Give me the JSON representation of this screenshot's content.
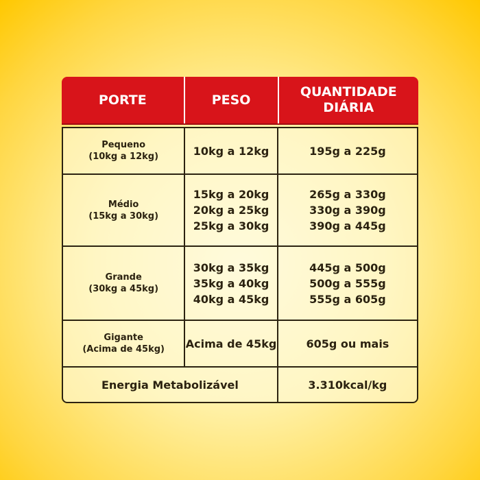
{
  "table": {
    "header": [
      "PORTE",
      "PESO",
      "QUANTIDADE DIÁRIA"
    ],
    "rows": [
      {
        "porte": [
          "Pequeno",
          "(10kg a 12kg)"
        ],
        "peso": [
          "10kg a 12kg"
        ],
        "quantidade": [
          "195g a 225g"
        ]
      },
      {
        "porte": [
          "Médio",
          "(15kg a 30kg)"
        ],
        "peso": [
          "15kg a 20kg",
          "20kg a 25kg",
          "25kg a 30kg"
        ],
        "quantidade": [
          "265g a 330g",
          "330g a 390g",
          "390g a 445g"
        ]
      },
      {
        "porte": [
          "Grande",
          "(30kg a 45kg)"
        ],
        "peso": [
          "30kg a 35kg",
          "35kg a 40kg",
          "40kg a 45kg"
        ],
        "quantidade": [
          "445g a 500g",
          "500g a 555g",
          "555g a 605g"
        ]
      },
      {
        "porte": [
          "Gigante",
          "(Acima de 45kg)"
        ],
        "peso": [
          "Acima de 45kg"
        ],
        "quantidade": [
          "605g ou mais"
        ]
      }
    ],
    "footer": {
      "label": "Energia Metabolizável",
      "value": "3.310kcal/kg"
    }
  }
}
